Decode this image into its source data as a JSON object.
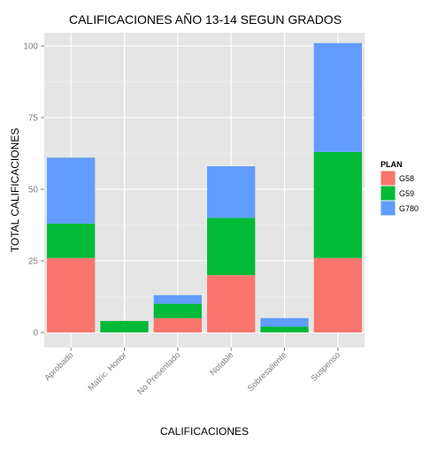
{
  "chart_data": {
    "type": "bar",
    "stacked": true,
    "title": "CALIFICACIONES AÑO 13-14 SEGUN GRADOS",
    "xlabel": "CALIFICACIONES",
    "ylabel": "TOTAL CALIFICACIONES",
    "categories": [
      "Aprobado",
      "Matric. Honor",
      "No Presentado",
      "Notable",
      "Sobresaliente",
      "Suspenso"
    ],
    "series": [
      {
        "name": "G58",
        "color": "#F8766D",
        "values": [
          26,
          0,
          5,
          20,
          0,
          26
        ]
      },
      {
        "name": "G59",
        "color": "#00BA38",
        "values": [
          12,
          4,
          5,
          20,
          2,
          37
        ]
      },
      {
        "name": "G780",
        "color": "#619CFF",
        "values": [
          23,
          0,
          3,
          18,
          3,
          38
        ]
      }
    ],
    "ylim": [
      0,
      105
    ],
    "yticks": [
      0,
      25,
      50,
      75,
      100
    ],
    "grid": true,
    "panel_background": "#E5E5E5",
    "legend": {
      "title": "PLAN",
      "position": "right"
    }
  }
}
